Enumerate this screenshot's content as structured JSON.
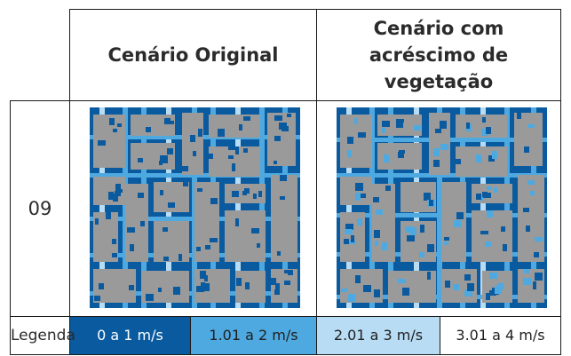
{
  "header": {
    "original": "Cenário Original",
    "vegetation_line1": "Cenário com",
    "vegetation_line2": "acréscimo de",
    "vegetation_line3": "vegetação"
  },
  "row": {
    "label": "09"
  },
  "legend": {
    "label": "Legenda",
    "items": [
      {
        "text": "0 a 1 m/s",
        "color": "#0a5aa0",
        "text_color": "#ffffff"
      },
      {
        "text": "1.01 a 2 m/s",
        "color": "#4ea9e0",
        "text_color": "#1f1f1f"
      },
      {
        "text": "2.01 a 3 m/s",
        "color": "#b8dcf3",
        "text_color": "#1f1f1f"
      },
      {
        "text": "3.01 a 4 m/s",
        "color": "#ffffff",
        "text_color": "#1f1f1f"
      }
    ]
  },
  "colors": {
    "building": "#9a9a9a",
    "dark": "#0a5aa0",
    "mid": "#4ea9e0",
    "light": "#b8dcf3"
  }
}
